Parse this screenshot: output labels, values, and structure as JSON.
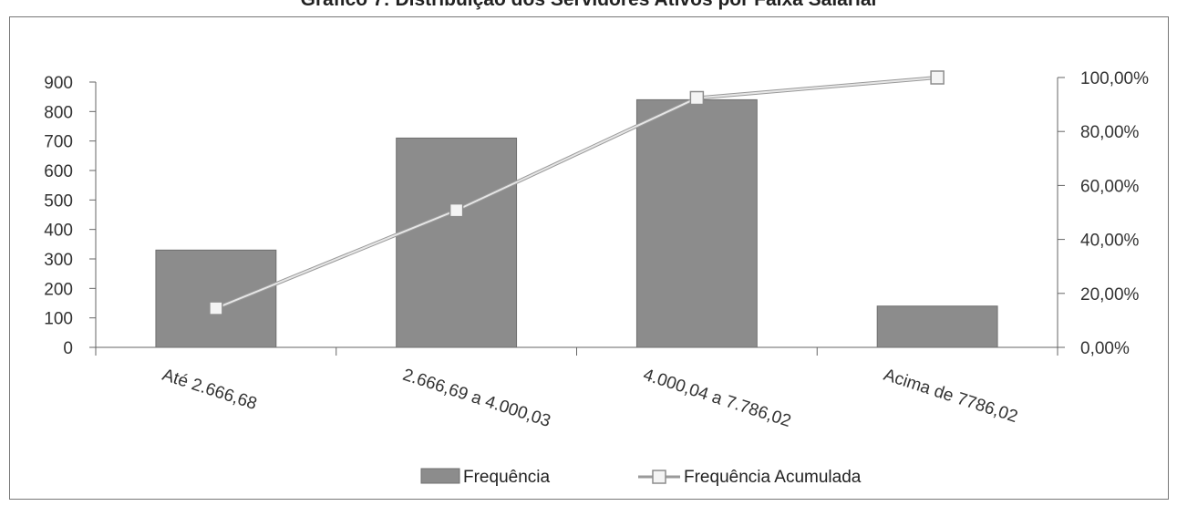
{
  "chart_data": {
    "type": "bar",
    "title": "Gráfico 7: Distribuição dos Servidores Ativos por Faixa Salarial",
    "categories": [
      "Até 2.666,68",
      "2.666,69 a 4.000,03",
      "4.000,04 a 7.786,02",
      "Acima de 7786,02"
    ],
    "series": [
      {
        "name": "Frequência",
        "type": "bar",
        "axis": "left",
        "values": [
          330,
          710,
          840,
          140
        ],
        "color": "#8c8c8c"
      },
      {
        "name": "Frequência Acumulada",
        "type": "line",
        "axis": "right",
        "values": [
          14.5,
          50.8,
          92.4,
          100.0
        ],
        "color": "#b5b5b5"
      }
    ],
    "y_left": {
      "ylim": [
        0,
        900
      ],
      "ticks": [
        "0",
        "100",
        "200",
        "300",
        "400",
        "500",
        "600",
        "700",
        "800",
        "900"
      ]
    },
    "y_right": {
      "ylim": [
        0,
        100
      ],
      "ticks": [
        "0,00%",
        "20,00%",
        "40,00%",
        "60,00%",
        "80,00%",
        "100,00%"
      ]
    },
    "legend_position": "bottom",
    "grid": false
  }
}
